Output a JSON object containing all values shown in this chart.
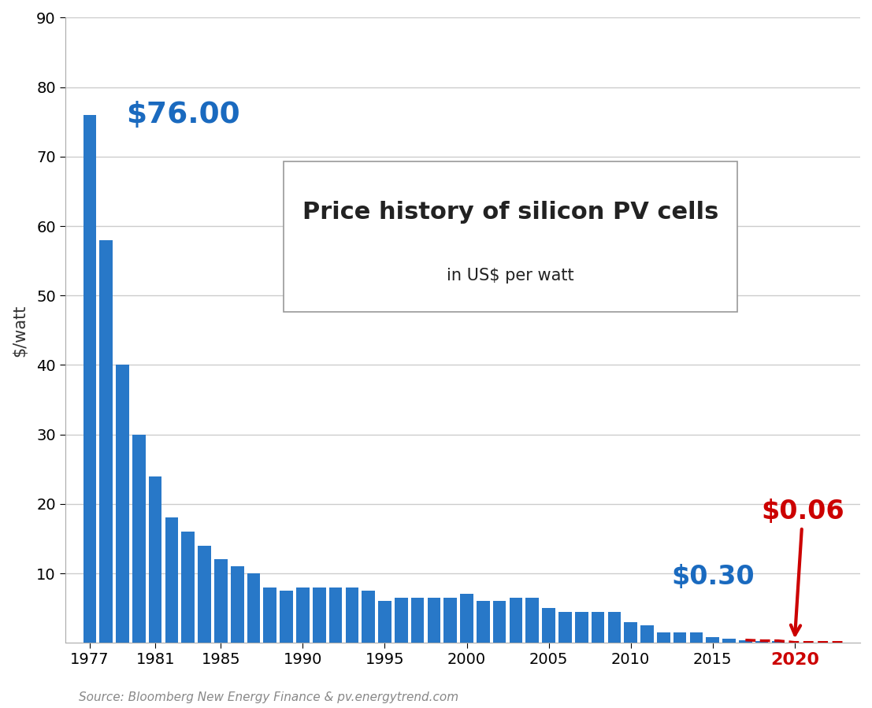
{
  "years": [
    1977,
    1978,
    1979,
    1980,
    1981,
    1982,
    1983,
    1984,
    1985,
    1986,
    1987,
    1988,
    1989,
    1990,
    1991,
    1992,
    1993,
    1994,
    1995,
    1996,
    1997,
    1998,
    1999,
    2000,
    2001,
    2002,
    2003,
    2004,
    2005,
    2006,
    2007,
    2008,
    2009,
    2010,
    2011,
    2012,
    2013,
    2014,
    2015,
    2016,
    2017,
    2018,
    2019
  ],
  "prices": [
    76.0,
    58.0,
    40.0,
    30.0,
    24.0,
    18.0,
    16.0,
    14.0,
    12.0,
    11.0,
    10.0,
    8.0,
    7.5,
    8.0,
    8.0,
    8.0,
    8.0,
    7.5,
    6.0,
    6.5,
    6.5,
    6.5,
    6.5,
    7.0,
    6.0,
    6.0,
    6.5,
    6.5,
    5.0,
    4.5,
    4.5,
    4.5,
    4.5,
    3.0,
    2.5,
    1.5,
    1.5,
    1.5,
    0.8,
    0.6,
    0.4,
    0.3,
    0.3
  ],
  "future_years": [
    2017,
    2018,
    2019,
    2020,
    2021,
    2022,
    2023
  ],
  "future_prices": [
    0.4,
    0.3,
    0.3,
    0.06,
    0.06,
    0.06,
    0.06
  ],
  "bar_color": "#2878c8",
  "future_color": "#cc0000",
  "annotation_1977_text": "$76.00",
  "annotation_1977_color": "#1a6abf",
  "annotation_2019_text": "$0.30",
  "annotation_2019_color": "#1a6abf",
  "annotation_2020_text": "$0.06",
  "annotation_2020_color": "#cc0000",
  "title_main": "Price history of silicon PV cells",
  "title_sub": "in US$ per watt",
  "ylabel": "$/watt",
  "source_text": "Source: Bloomberg New Energy Finance & pv.energytrend.com",
  "ylim_max": 90,
  "background_color": "#ffffff",
  "plot_bg_color": "#ffffff",
  "grid_color": "#cccccc",
  "xticks": [
    1977,
    1981,
    1985,
    1990,
    1995,
    2000,
    2005,
    2010,
    2015,
    2020
  ],
  "yticks": [
    10,
    20,
    30,
    40,
    50,
    60,
    70,
    80,
    90
  ]
}
